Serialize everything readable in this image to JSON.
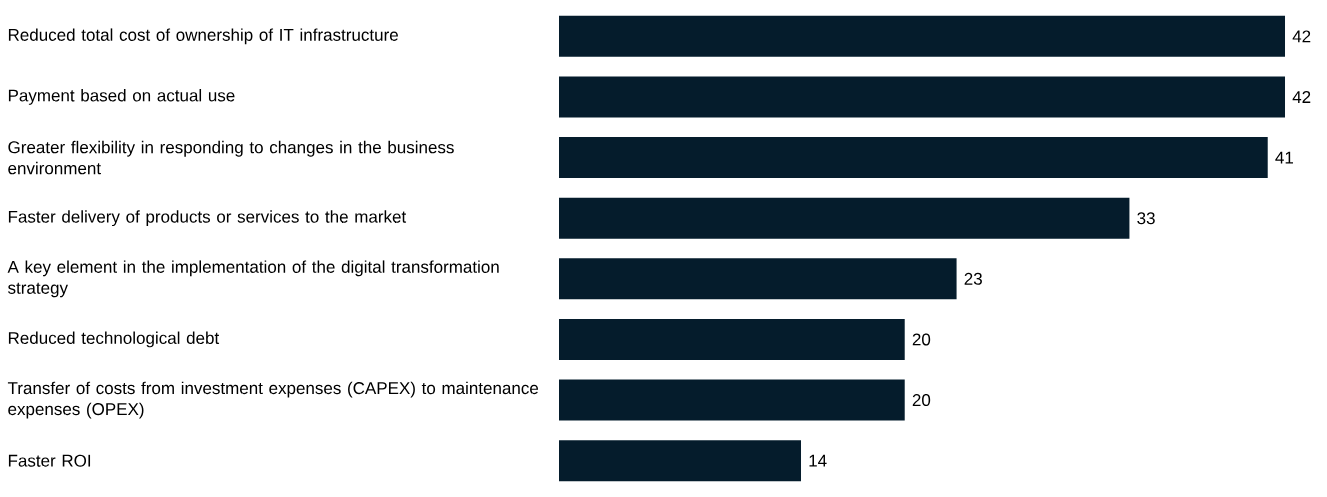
{
  "chart_data": {
    "type": "bar",
    "orientation": "horizontal",
    "categories": [
      "Reduced total cost of ownership of IT infrastructure",
      "Payment based on actual use",
      "Greater flexibility in responding to changes in the business environment",
      "Faster delivery of products or services to the market",
      "A key element in the implementation of the digital transformation strategy",
      "Reduced technological debt",
      "Transfer of costs from investment expenses (CAPEX) to maintenance expenses (OPEX)",
      "Faster ROI"
    ],
    "values": [
      42,
      42,
      41,
      33,
      23,
      20,
      20,
      14
    ],
    "color": "#051c2c",
    "data_labels": true
  }
}
